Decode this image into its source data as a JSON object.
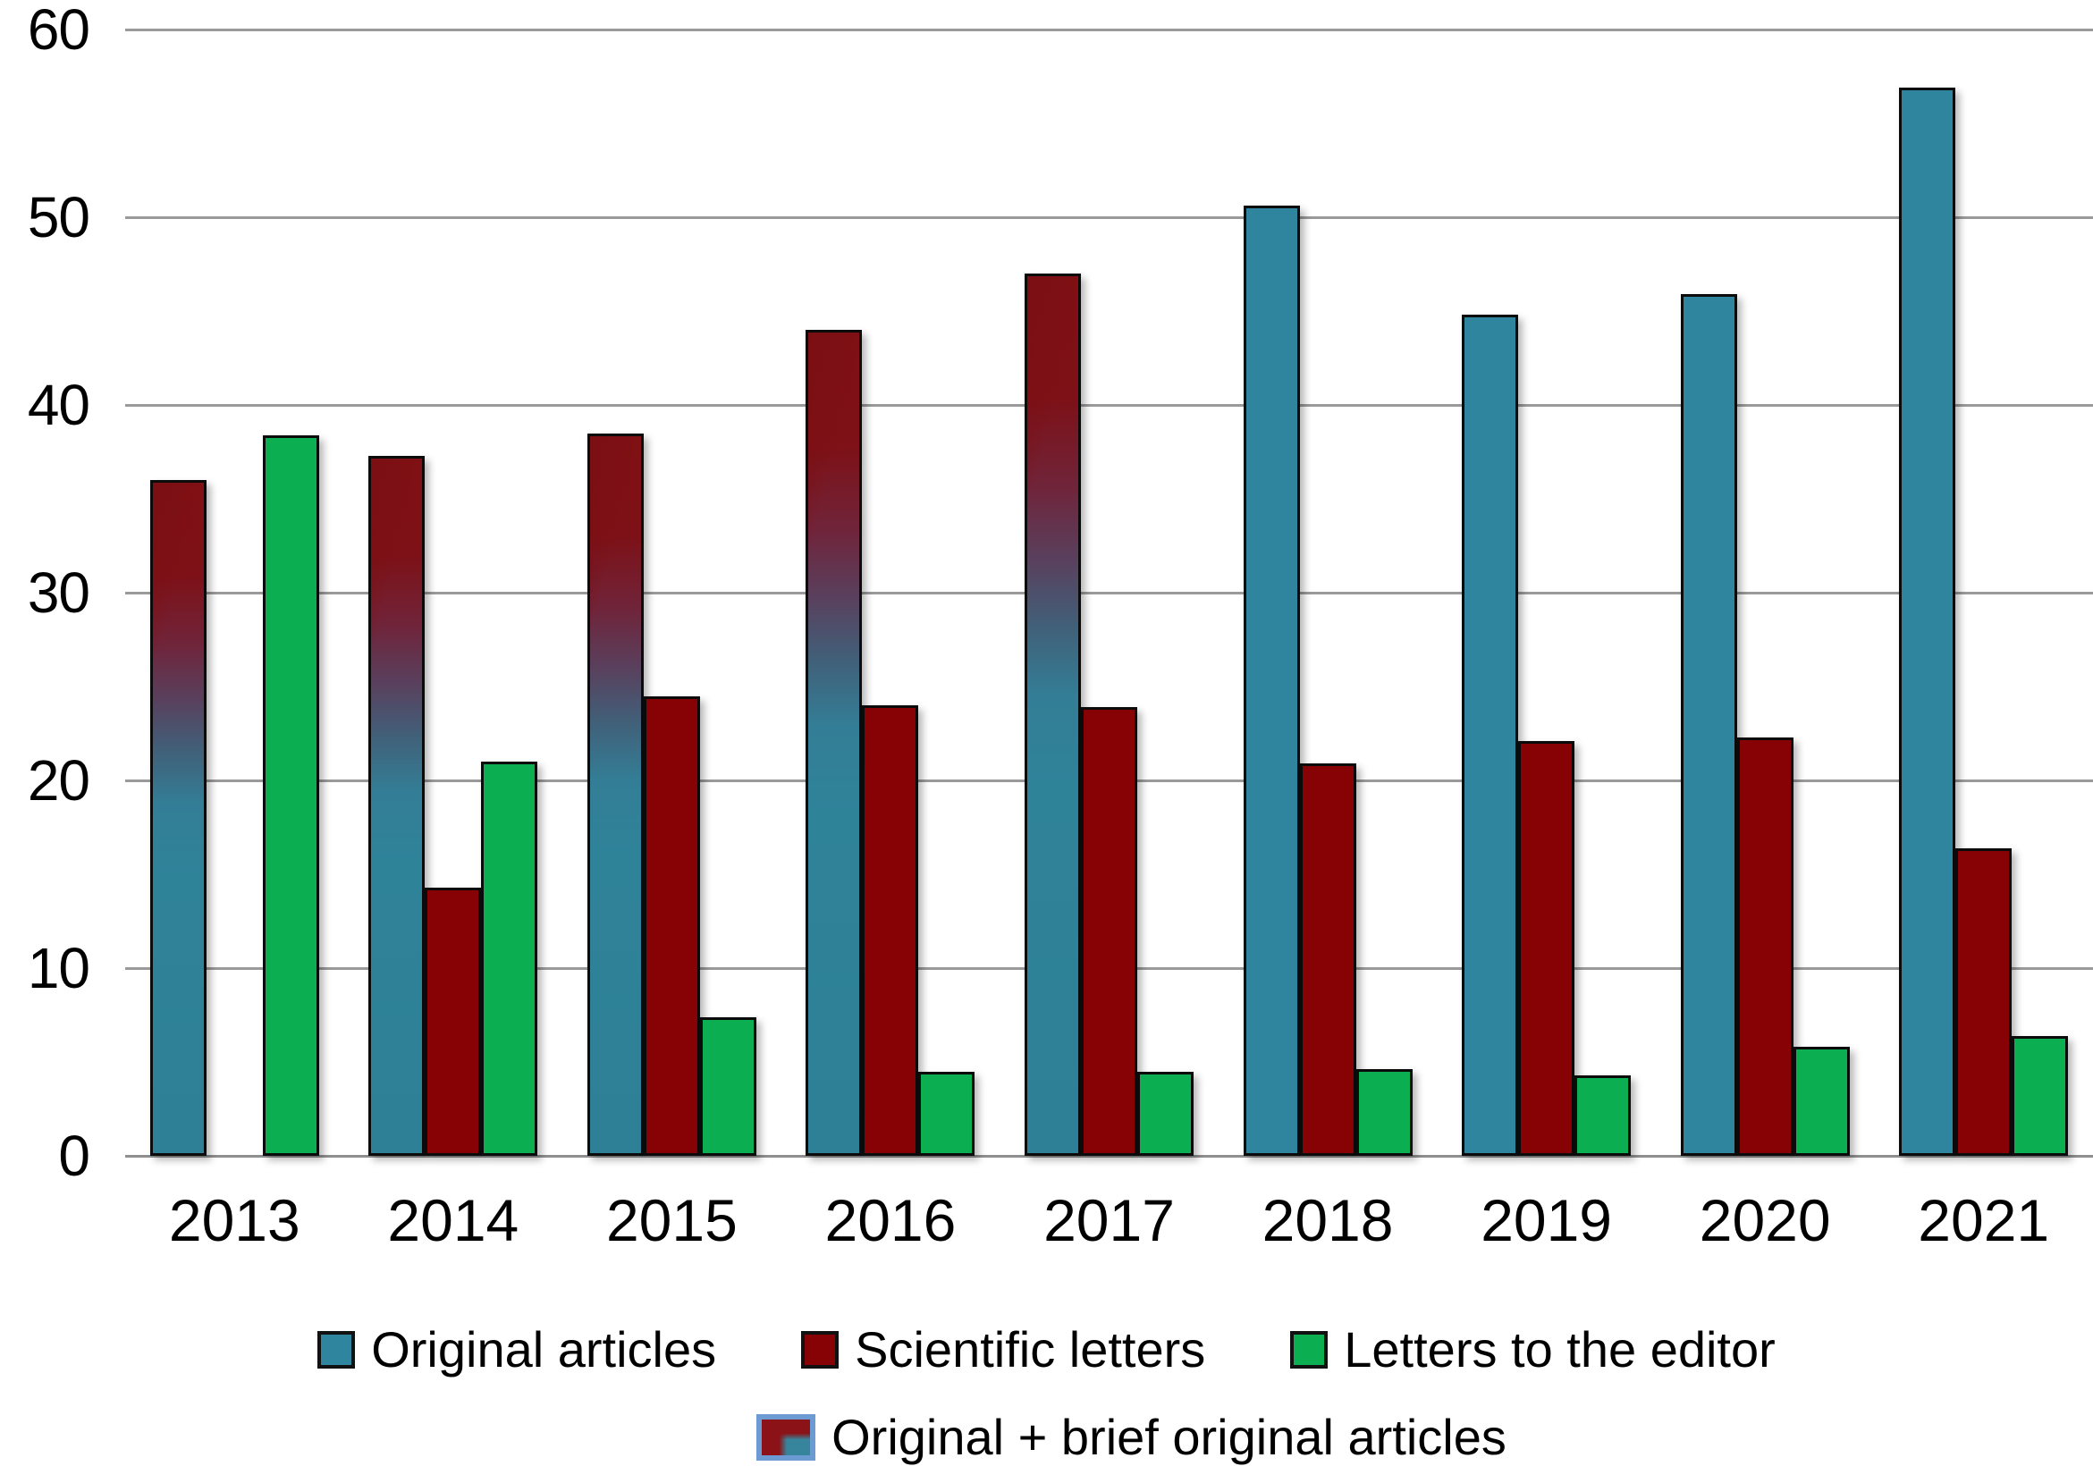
{
  "chart_data": {
    "type": "bar",
    "title": "",
    "xlabel": "",
    "ylabel": "",
    "categories": [
      "2013",
      "2014",
      "2015",
      "2016",
      "2017",
      "2018",
      "2019",
      "2020",
      "2021"
    ],
    "series": [
      {
        "name": "Original articles",
        "color": "#2f859d",
        "values": [
          null,
          null,
          null,
          null,
          null,
          50.6,
          44.8,
          45.9,
          56.9
        ]
      },
      {
        "name": "Scientific letters",
        "color": "#870205",
        "values": [
          null,
          14.3,
          24.5,
          24.0,
          23.9,
          20.9,
          22.1,
          22.3,
          16.4
        ]
      },
      {
        "name": "Letters to the editor",
        "color": "#0bae51",
        "values": [
          38.4,
          21.0,
          7.4,
          4.5,
          4.5,
          4.6,
          4.3,
          5.8,
          6.4
        ]
      },
      {
        "name": "Original + brief original articles",
        "color": "gradient #801014 (top) to #2e8096 (bottom)",
        "values": [
          36.0,
          37.3,
          38.5,
          44.0,
          47.0,
          null,
          null,
          null,
          null
        ]
      }
    ],
    "ylim": [
      0,
      60
    ],
    "yticks": [
      0,
      10,
      20,
      30,
      40,
      50,
      60
    ],
    "grid": "horizontal",
    "gridline_color": "#9a9a9a",
    "legend_position": "bottom",
    "bar_border_color": "#0b0b0b"
  }
}
